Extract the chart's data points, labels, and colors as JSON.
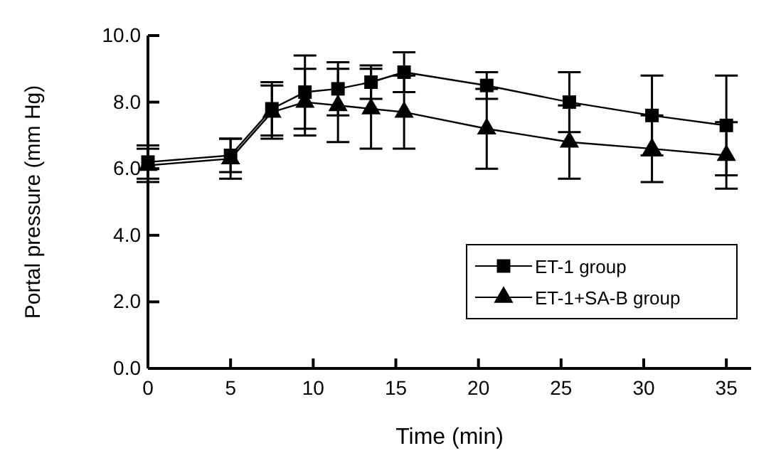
{
  "chart_data": {
    "type": "line",
    "xlabel": "Time (min)",
    "ylabel": "Portal pressure (mm Hg)",
    "x": [
      0,
      5,
      7.5,
      9.5,
      11.5,
      13.5,
      15.5,
      20.5,
      25.5,
      30.5,
      35
    ],
    "xlim": [
      0,
      36.5
    ],
    "xticks": [
      0,
      5,
      10,
      15,
      20,
      25,
      30,
      35
    ],
    "ylim": [
      0,
      10
    ],
    "yticks": [
      {
        "value": 0,
        "label": "0.0"
      },
      {
        "value": 2,
        "label": "2.0"
      },
      {
        "value": 4,
        "label": "4.0"
      },
      {
        "value": 6,
        "label": "6.0"
      },
      {
        "value": 8,
        "label": "8.0"
      },
      {
        "value": 10,
        "label": "10.0"
      }
    ],
    "grid": false,
    "legend": "right",
    "series": [
      {
        "name": "ET-1 group",
        "color": "#000000",
        "marker": "square",
        "values": [
          6.2,
          6.4,
          7.8,
          8.3,
          8.4,
          8.6,
          8.9,
          8.5,
          8.0,
          7.6,
          7.3
        ],
        "errors": [
          0.5,
          0.5,
          0.8,
          1.1,
          0.8,
          0.5,
          0.6,
          0.4,
          0.9,
          1.2,
          1.5
        ]
      },
      {
        "name": "ET-1+SA-B group",
        "color": "#000000",
        "marker": "triangle",
        "values": [
          6.1,
          6.3,
          7.7,
          8.0,
          7.9,
          7.8,
          7.7,
          7.2,
          6.8,
          6.6,
          6.4
        ],
        "errors": [
          0.5,
          0.6,
          0.8,
          1.0,
          1.1,
          1.2,
          1.1,
          1.2,
          1.1,
          1.0,
          1.0
        ]
      }
    ]
  }
}
